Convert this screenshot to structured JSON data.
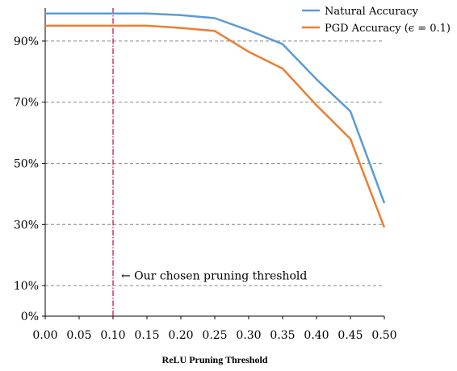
{
  "chart_data": {
    "type": "line",
    "title": "",
    "xlabel": "ReLU Pruning Threshold",
    "ylabel": "",
    "x": [
      0.0,
      0.05,
      0.1,
      0.15,
      0.2,
      0.25,
      0.3,
      0.35,
      0.4,
      0.45,
      0.5
    ],
    "xlim": [
      0.0,
      0.5
    ],
    "ylim": [
      0,
      100
    ],
    "x_tick_labels": [
      "0.00",
      "0.05",
      "0.10",
      "0.15",
      "0.20",
      "0.25",
      "0.30",
      "0.35",
      "0.40",
      "0.45",
      "0.50"
    ],
    "x_tick_values": [
      0.0,
      0.05,
      0.1,
      0.15,
      0.2,
      0.25,
      0.3,
      0.35,
      0.4,
      0.45,
      0.5
    ],
    "y_tick_labels": [
      "0%",
      "10%",
      "30%",
      "50%",
      "70%",
      "90%"
    ],
    "y_tick_values": [
      0,
      10,
      30,
      50,
      70,
      90
    ],
    "gridlines_y": [
      10,
      30,
      50,
      70,
      90
    ],
    "grid": "horizontal dashed",
    "legend_position": "top-right",
    "series": [
      {
        "name": "Natural Accuracy",
        "color": "#5b9bd5",
        "values": [
          99,
          99,
          99,
          99,
          98.5,
          97.5,
          93.5,
          89,
          77.5,
          67,
          37
        ]
      },
      {
        "name": "PGD Accuracy",
        "legend_suffix": "(ϵ = 0.1)",
        "color": "#ed7d31",
        "values": [
          95,
          95,
          95,
          95,
          94.3,
          93.3,
          86.5,
          81,
          69,
          58,
          29
        ]
      }
    ],
    "annotation": {
      "x": 0.1,
      "text": "Our chosen pruning threshold",
      "arrow": "←",
      "y_text": 13,
      "line_color": "#c0185a"
    }
  }
}
